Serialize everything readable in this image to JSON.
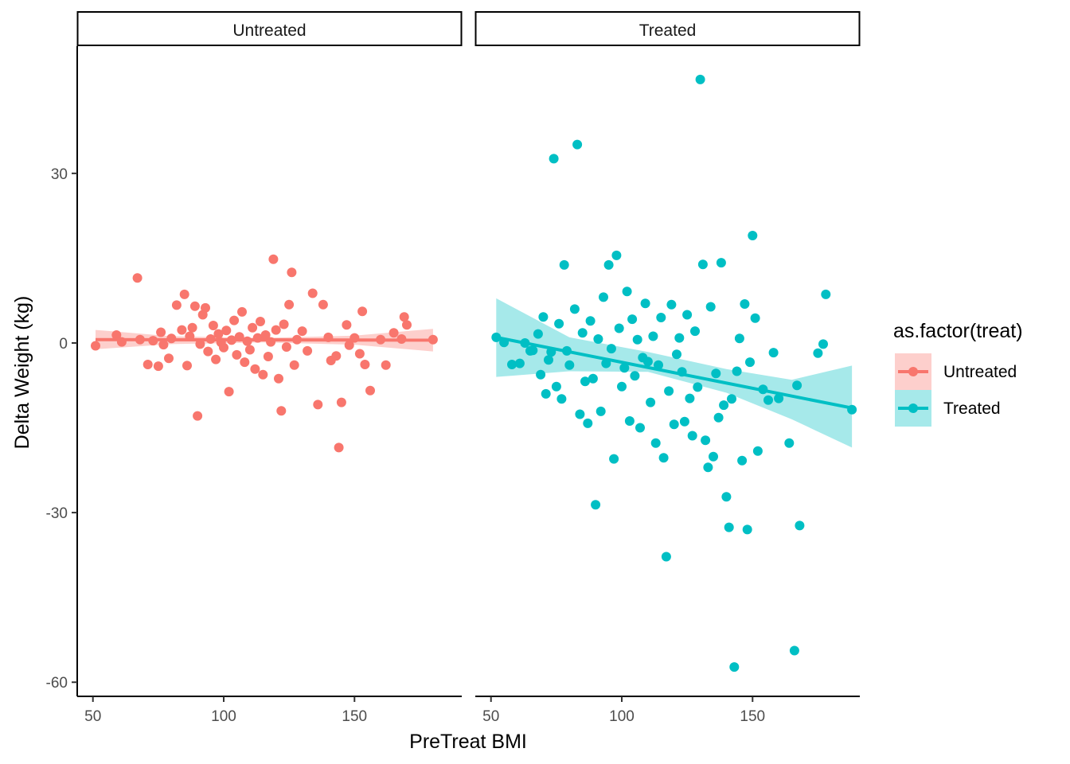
{
  "chart_data": {
    "type": "scatter",
    "xlabel": "PreTreat BMI",
    "ylabel": "Delta Weight (kg)",
    "xlim": [
      44,
      191
    ],
    "ylim": [
      -62.5,
      52.5
    ],
    "x_ticks": [
      50,
      100,
      150
    ],
    "y_ticks": [
      -60,
      -30,
      0,
      30
    ],
    "legend": {
      "title": "as.factor(treat)",
      "placement": "right",
      "entries": [
        {
          "label": "Untreated",
          "color": "#F8766D"
        },
        {
          "label": "Treated",
          "color": "#00BFC4"
        }
      ]
    },
    "panels": [
      {
        "strip": "Untreated",
        "color": "#F8766D",
        "trend": {
          "x": [
            51,
            180
          ],
          "y": [
            0.6,
            0.5
          ]
        },
        "band": {
          "x": [
            51,
            80,
            115,
            150,
            180
          ],
          "upper": [
            2.3,
            1.2,
            0.9,
            1.3,
            2.5
          ],
          "lower": [
            -1.1,
            -0.2,
            0.1,
            -0.3,
            -1.5
          ]
        },
        "points": [
          [
            51,
            -0.5
          ],
          [
            59,
            1.4
          ],
          [
            61,
            0.2
          ],
          [
            67,
            11.5
          ],
          [
            68,
            0.6
          ],
          [
            71,
            -3.8
          ],
          [
            73,
            0.4
          ],
          [
            75,
            -4.1
          ],
          [
            76,
            1.9
          ],
          [
            77,
            -0.3
          ],
          [
            79,
            -2.7
          ],
          [
            80,
            0.8
          ],
          [
            82,
            6.7
          ],
          [
            84,
            2.3
          ],
          [
            85,
            8.6
          ],
          [
            86,
            -4.0
          ],
          [
            87,
            1.2
          ],
          [
            88,
            2.7
          ],
          [
            89,
            6.5
          ],
          [
            90,
            -12.9
          ],
          [
            91,
            -0.2
          ],
          [
            92,
            5.0
          ],
          [
            93,
            6.2
          ],
          [
            94,
            -1.5
          ],
          [
            95,
            0.7
          ],
          [
            96,
            3.1
          ],
          [
            97,
            -2.9
          ],
          [
            98,
            1.6
          ],
          [
            99,
            0.1
          ],
          [
            100,
            -0.8
          ],
          [
            101,
            2.2
          ],
          [
            102,
            -8.6
          ],
          [
            103,
            0.5
          ],
          [
            104,
            4.0
          ],
          [
            105,
            -2.1
          ],
          [
            106,
            1.1
          ],
          [
            107,
            5.5
          ],
          [
            108,
            -3.4
          ],
          [
            109,
            0.3
          ],
          [
            110,
            -1.2
          ],
          [
            111,
            2.7
          ],
          [
            112,
            -4.6
          ],
          [
            113,
            0.9
          ],
          [
            114,
            3.8
          ],
          [
            115,
            -5.6
          ],
          [
            116,
            1.4
          ],
          [
            117,
            -2.4
          ],
          [
            118,
            0.2
          ],
          [
            119,
            14.8
          ],
          [
            120,
            2.3
          ],
          [
            121,
            -6.3
          ],
          [
            122,
            -12.0
          ],
          [
            123,
            3.3
          ],
          [
            124,
            -0.7
          ],
          [
            125,
            6.8
          ],
          [
            126,
            12.5
          ],
          [
            127,
            -3.9
          ],
          [
            128,
            0.6
          ],
          [
            130,
            2.1
          ],
          [
            132,
            -1.4
          ],
          [
            134,
            8.8
          ],
          [
            136,
            -10.9
          ],
          [
            138,
            6.8
          ],
          [
            140,
            1.0
          ],
          [
            141,
            -3.1
          ],
          [
            143,
            -2.3
          ],
          [
            144,
            -18.5
          ],
          [
            145,
            -10.5
          ],
          [
            147,
            3.2
          ],
          [
            148,
            -0.4
          ],
          [
            150,
            0.9
          ],
          [
            152,
            -1.9
          ],
          [
            153,
            5.6
          ],
          [
            154,
            -3.8
          ],
          [
            156,
            -8.4
          ],
          [
            160,
            0.6
          ],
          [
            162,
            -3.9
          ],
          [
            165,
            1.8
          ],
          [
            168,
            0.7
          ],
          [
            169,
            4.6
          ],
          [
            170,
            3.2
          ],
          [
            180,
            0.6
          ]
        ]
      },
      {
        "strip": "Treated",
        "color": "#00BFC4",
        "trend": {
          "x": [
            52,
            188
          ],
          "y": [
            1.0,
            -11.5
          ]
        },
        "band": {
          "x": [
            52,
            80,
            110,
            140,
            165,
            188
          ],
          "upper": [
            7.9,
            1.0,
            -1.6,
            -4.6,
            -6.5,
            -4.0
          ],
          "lower": [
            -6.0,
            -5.0,
            -5.1,
            -8.8,
            -13.5,
            -18.5
          ]
        },
        "points": [
          [
            52,
            1.0
          ],
          [
            55,
            0.1
          ],
          [
            58,
            -3.8
          ],
          [
            61,
            -3.6
          ],
          [
            63,
            0.0
          ],
          [
            65,
            -1.4
          ],
          [
            66,
            -1.3
          ],
          [
            68,
            1.6
          ],
          [
            69,
            -5.6
          ],
          [
            70,
            4.6
          ],
          [
            71,
            -9.0
          ],
          [
            72,
            -3.0
          ],
          [
            73,
            -1.6
          ],
          [
            74,
            32.6
          ],
          [
            75,
            -7.7
          ],
          [
            76,
            3.4
          ],
          [
            77,
            -9.9
          ],
          [
            78,
            13.8
          ],
          [
            79,
            -1.4
          ],
          [
            80,
            -3.9
          ],
          [
            82,
            6.0
          ],
          [
            83,
            35.1
          ],
          [
            84,
            -12.6
          ],
          [
            85,
            1.8
          ],
          [
            86,
            -6.8
          ],
          [
            87,
            -14.2
          ],
          [
            88,
            3.9
          ],
          [
            89,
            -6.3
          ],
          [
            90,
            -28.6
          ],
          [
            91,
            0.7
          ],
          [
            92,
            -12.1
          ],
          [
            93,
            8.1
          ],
          [
            94,
            -3.6
          ],
          [
            95,
            13.8
          ],
          [
            96,
            -1.0
          ],
          [
            97,
            -20.5
          ],
          [
            98,
            15.5
          ],
          [
            99,
            2.6
          ],
          [
            100,
            -7.7
          ],
          [
            101,
            -4.4
          ],
          [
            102,
            9.1
          ],
          [
            103,
            -13.8
          ],
          [
            104,
            4.2
          ],
          [
            105,
            -5.8
          ],
          [
            106,
            0.6
          ],
          [
            107,
            -15.0
          ],
          [
            108,
            -2.6
          ],
          [
            109,
            7.0
          ],
          [
            110,
            -3.3
          ],
          [
            111,
            -10.5
          ],
          [
            112,
            1.2
          ],
          [
            113,
            -17.7
          ],
          [
            114,
            -3.9
          ],
          [
            115,
            4.5
          ],
          [
            116,
            -20.3
          ],
          [
            117,
            -37.8
          ],
          [
            118,
            -8.5
          ],
          [
            119,
            6.8
          ],
          [
            120,
            -14.4
          ],
          [
            121,
            -2.0
          ],
          [
            122,
            0.9
          ],
          [
            123,
            -5.1
          ],
          [
            124,
            -13.9
          ],
          [
            125,
            5.0
          ],
          [
            126,
            -9.8
          ],
          [
            127,
            -16.4
          ],
          [
            128,
            2.1
          ],
          [
            129,
            -7.8
          ],
          [
            130,
            46.6
          ],
          [
            131,
            13.9
          ],
          [
            132,
            -17.2
          ],
          [
            133,
            -22.0
          ],
          [
            134,
            6.4
          ],
          [
            135,
            -20.1
          ],
          [
            136,
            -5.4
          ],
          [
            137,
            -13.2
          ],
          [
            138,
            14.2
          ],
          [
            139,
            -11.0
          ],
          [
            140,
            -27.2
          ],
          [
            141,
            -32.6
          ],
          [
            142,
            -9.9
          ],
          [
            143,
            -57.3
          ],
          [
            144,
            -5.0
          ],
          [
            145,
            0.8
          ],
          [
            146,
            -20.8
          ],
          [
            147,
            6.9
          ],
          [
            148,
            -33.0
          ],
          [
            149,
            -3.4
          ],
          [
            150,
            19.0
          ],
          [
            151,
            4.4
          ],
          [
            152,
            -19.1
          ],
          [
            154,
            -8.2
          ],
          [
            156,
            -10.1
          ],
          [
            158,
            -1.7
          ],
          [
            160,
            -9.8
          ],
          [
            164,
            -17.7
          ],
          [
            166,
            -54.4
          ],
          [
            167,
            -7.5
          ],
          [
            168,
            -32.3
          ],
          [
            175,
            -1.8
          ],
          [
            177,
            -0.2
          ],
          [
            178,
            8.6
          ],
          [
            188,
            -11.8
          ]
        ]
      }
    ]
  }
}
